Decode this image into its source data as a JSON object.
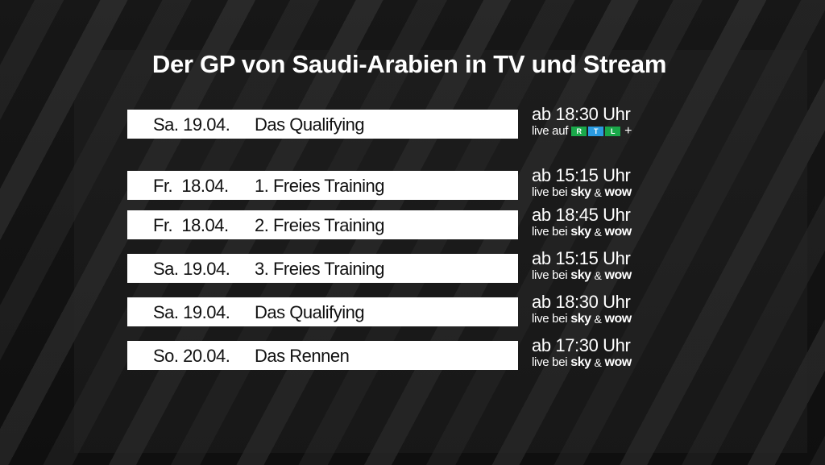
{
  "title": "Der GP von Saudi-Arabien in TV und Stream",
  "featured": {
    "date": "Sa. 19.04.",
    "event": "Das Qualifying",
    "time": "ab 18:30 Uhr",
    "live_label": "live auf",
    "logo": {
      "letters": [
        "R",
        "T",
        "L"
      ],
      "plus": "+",
      "colors": [
        "#1aa84a",
        "#2b9be0",
        "#1aa84a"
      ]
    }
  },
  "schedule": [
    {
      "date": "Fr.  18.04.",
      "event": "1. Freies Training",
      "time": "ab 15:15 Uhr",
      "live_label": "live bei",
      "provider1": "sky",
      "amp": "&",
      "provider2": "wow"
    },
    {
      "date": "Fr.  18.04.",
      "event": "2. Freies Training",
      "time": "ab 18:45 Uhr",
      "live_label": "live bei",
      "provider1": "sky",
      "amp": "&",
      "provider2": "wow"
    },
    {
      "date": "Sa. 19.04.",
      "event": "3. Freies Training",
      "time": "ab 15:15 Uhr",
      "live_label": "live bei",
      "provider1": "sky",
      "amp": "&",
      "provider2": "wow"
    },
    {
      "date": "Sa. 19.04.",
      "event": "Das Qualifying",
      "time": "ab 18:30 Uhr",
      "live_label": "live bei",
      "provider1": "sky",
      "amp": "&",
      "provider2": "wow"
    },
    {
      "date": "So. 20.04.",
      "event": "Das Rennen",
      "time": "ab 17:30 Uhr",
      "live_label": "live bei",
      "provider1": "sky",
      "amp": "&",
      "provider2": "wow"
    }
  ],
  "colors": {
    "background": "#121212",
    "bar": "#ffffff",
    "text_light": "#ffffff",
    "text_dark": "#111111"
  }
}
